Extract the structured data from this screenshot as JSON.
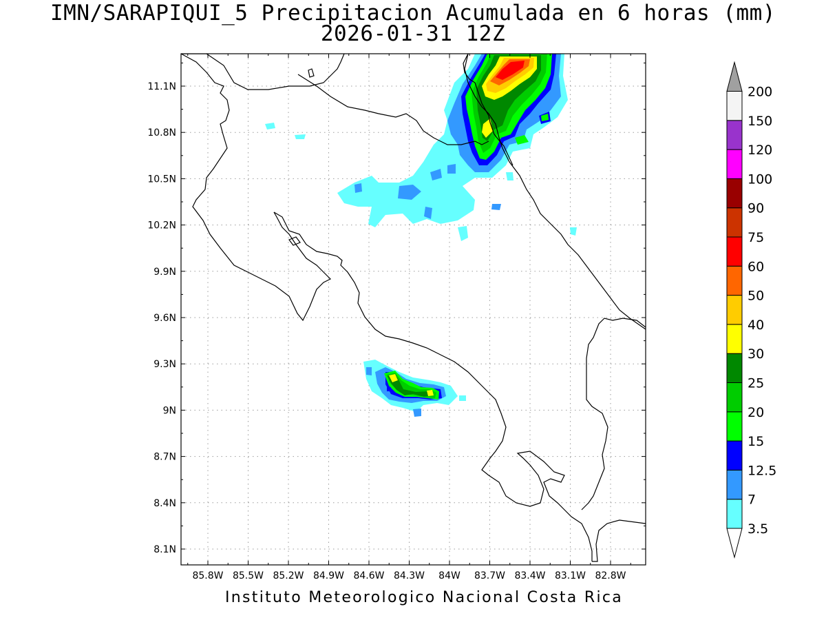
{
  "title": {
    "line1": "IMN/SARAPIQUI_5 Precipitacion Acumulada en 6 horas (mm)",
    "line2": "2026-01-31 12Z"
  },
  "footer": "Instituto Meteorologico Nacional Costa Rica",
  "map": {
    "lon_labels": [
      "85.8W",
      "85.5W",
      "85.2W",
      "84.9W",
      "84.6W",
      "84.3W",
      "84W",
      "83.7W",
      "83.4W",
      "83.1W",
      "82.8W"
    ],
    "lat_labels": [
      "11.1N",
      "10.8N",
      "10.5N",
      "10.2N",
      "9.9N",
      "9.6N",
      "9.3N",
      "9N",
      "8.7N",
      "8.4N",
      "8.1N"
    ],
    "grid": true,
    "colors": {
      "coast": "#000000",
      "gridline": "#9a9a9a"
    }
  },
  "colorbar": {
    "levels": [
      {
        "label": "3.5",
        "color": "#66ffff"
      },
      {
        "label": "7",
        "color": "#3399ff"
      },
      {
        "label": "12.5",
        "color": "#0000ff"
      },
      {
        "label": "15",
        "color": "#00ff00"
      },
      {
        "label": "20",
        "color": "#00cc00"
      },
      {
        "label": "25",
        "color": "#008800"
      },
      {
        "label": "30",
        "color": "#ffff00"
      },
      {
        "label": "40",
        "color": "#ffcc00"
      },
      {
        "label": "50",
        "color": "#ff6600"
      },
      {
        "label": "60",
        "color": "#ff0000"
      },
      {
        "label": "75",
        "color": "#cc3300"
      },
      {
        "label": "90",
        "color": "#990000"
      },
      {
        "label": "100",
        "color": "#ff00ff"
      },
      {
        "label": "120",
        "color": "#9933cc"
      },
      {
        "label": "150",
        "color": "#f4f4f4"
      },
      {
        "label": "200",
        "color": "#a0a0a0"
      }
    ],
    "bottom_arrow_color": "#ffffff",
    "top_arrow_color": "#a0a0a0"
  }
}
